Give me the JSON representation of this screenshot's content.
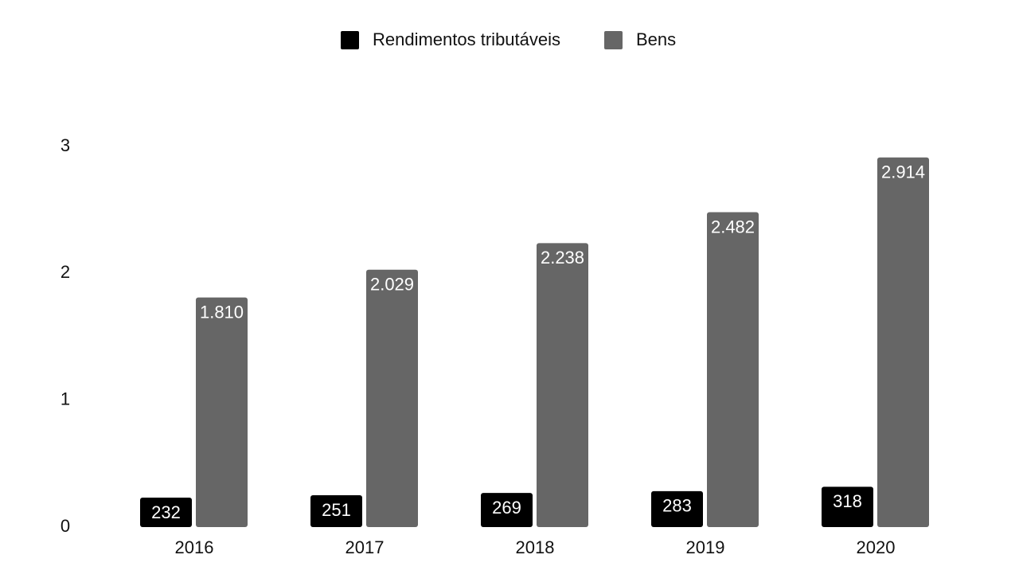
{
  "chart_data": {
    "type": "bar",
    "categories": [
      "2016",
      "2017",
      "2018",
      "2019",
      "2020"
    ],
    "series": [
      {
        "name": "Rendimentos tributáveis",
        "color": "#000000",
        "values": [
          0.232,
          0.251,
          0.269,
          0.283,
          0.318
        ],
        "value_labels": [
          "232",
          "251",
          "269",
          "283",
          "318"
        ]
      },
      {
        "name": "Bens",
        "color": "#666666",
        "values": [
          1.81,
          2.029,
          2.238,
          2.482,
          2.914
        ],
        "value_labels": [
          "1.810",
          "2.029",
          "2.238",
          "2.482",
          "2.914"
        ]
      }
    ],
    "ylim": [
      0,
      3
    ],
    "yticks": [
      0,
      1,
      2,
      3
    ],
    "grid": false,
    "legend": "top"
  }
}
